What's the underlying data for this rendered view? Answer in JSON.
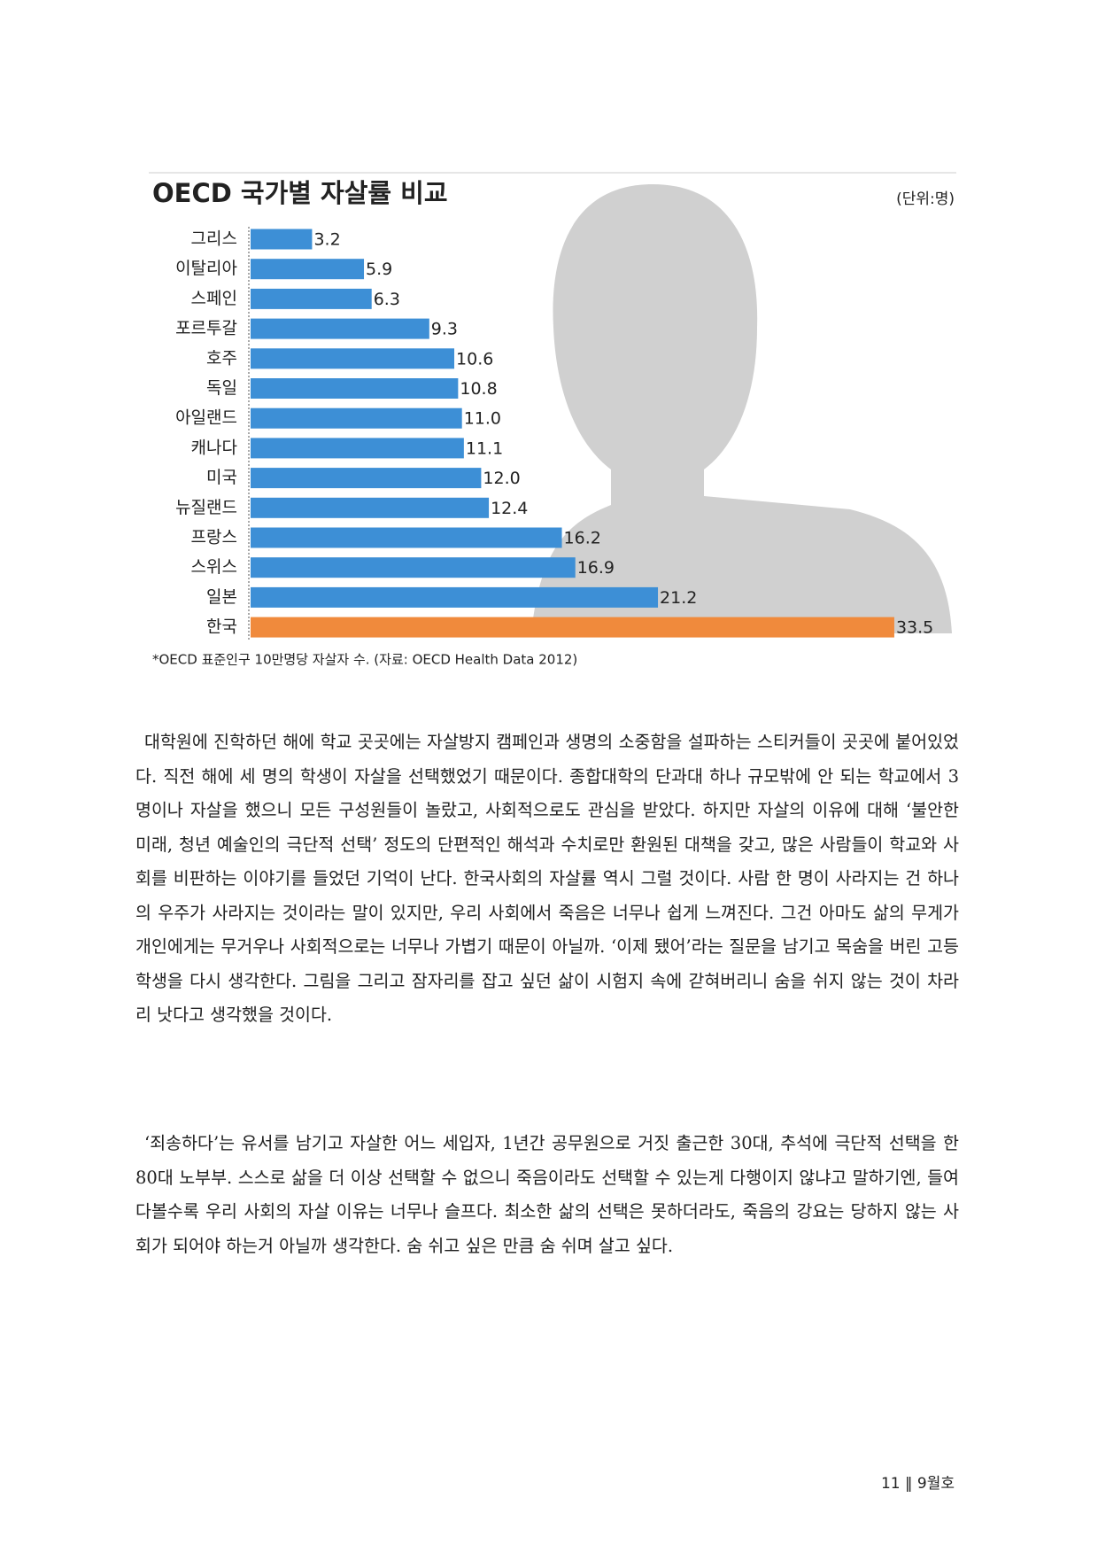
{
  "chart_data": {
    "type": "barh",
    "title": "OECD 국가별 자살률 비교",
    "unit": "(단위:명)",
    "footnote": "*OECD 표준인구 10만명당 자살자 수. (자료: OECD Health Data 2012)",
    "categories": [
      "그리스",
      "이탈리아",
      "스페인",
      "포르투갈",
      "호주",
      "독일",
      "아일랜드",
      "캐나다",
      "미국",
      "뉴질랜드",
      "프랑스",
      "스위스",
      "일본",
      "한국"
    ],
    "values": [
      3.2,
      5.9,
      6.3,
      9.3,
      10.6,
      10.8,
      11.0,
      11.1,
      12.0,
      12.4,
      16.2,
      16.9,
      21.2,
      33.5
    ],
    "value_labels": [
      "3.2",
      "5.9",
      "6.3",
      "9.3",
      "10.6",
      "10.8",
      "11.0",
      "11.1",
      "12.0",
      "12.4",
      "16.2",
      "16.9",
      "21.2",
      "33.5"
    ],
    "colors": [
      "#3d8fd6",
      "#3d8fd6",
      "#3d8fd6",
      "#3d8fd6",
      "#3d8fd6",
      "#3d8fd6",
      "#3d8fd6",
      "#3d8fd6",
      "#3d8fd6",
      "#3d8fd6",
      "#3d8fd6",
      "#3d8fd6",
      "#3d8fd6",
      "#f08a3c"
    ]
  },
  "body": {
    "paragraphs": [
      "대학원에 진학하던 해에 학교 곳곳에는 자살방지 캠페인과 생명의 소중함을 설파하는 스티커들이 곳곳에 붙어있었다. 직전 해에 세 명의 학생이 자살을 선택했었기 때문이다. 종합대학의 단과대 하나 규모밖에 안 되는 학교에서 3명이나 자살을 했으니 모든 구성원들이 놀랐고, 사회적으로도 관심을 받았다. 하지만 자살의 이유에 대해 ‘불안한 미래, 청년 예술인의 극단적 선택’ 정도의 단편적인 해석과 수치로만 환원된 대책을 갖고, 많은 사람들이 학교와 사회를 비판하는 이야기를 들었던 기억이 난다. 한국사회의 자살률 역시 그럴 것이다. 사람 한 명이 사라지는 건 하나의 우주가 사라지는 것이라는 말이 있지만, 우리 사회에서 죽음은 너무나 쉽게 느껴진다. 그건 아마도 삶의 무게가 개인에게는 무거우나 사회적으로는 너무나 가볍기 때문이 아닐까. ‘이제 됐어’라는 질문을 남기고 목숨을 버린 고등학생을 다시 생각한다. 그림을 그리고 잠자리를 잡고 싶던 삶이 시험지 속에 갇혀버리니 숨을 쉬지 않는 것이 차라리 낫다고 생각했을 것이다.",
      "‘죄송하다’는 유서를 남기고 자살한 어느 세입자, 1년간 공무원으로 거짓 출근한 30대, 추석에 극단적 선택을 한 80대 노부부. 스스로 삶을 더 이상 선택할 수 없으니 죽음이라도 선택할 수 있는게 다행이지 않냐고 말하기엔, 들여다볼수록 우리 사회의 자살 이유는 너무나 슬프다. 최소한 삶의 선택은 못하더라도, 죽음의 강요는 당하지 않는 사회가 되어야 하는거 아닐까 생각한다. 숨 쉬고 싶은 만큼 숨 쉬며 살고 싶다."
    ]
  },
  "footer": {
    "page": "11 ‖ 9월호"
  }
}
